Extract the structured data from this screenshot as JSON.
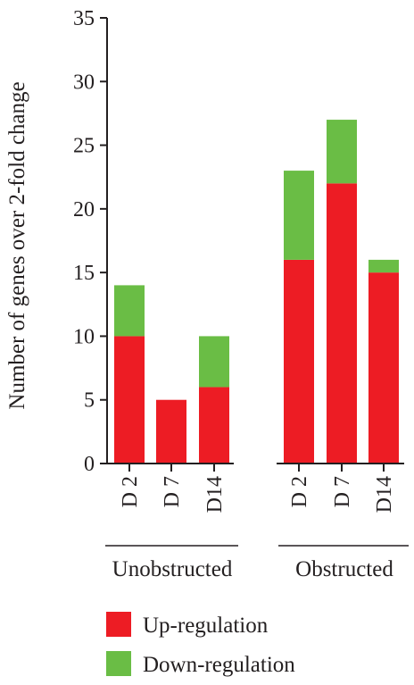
{
  "chart_data": {
    "type": "bar",
    "stacked": true,
    "title": "",
    "xlabel": "",
    "ylabel": "Number of genes over 2-fold change",
    "ylim": [
      0,
      35
    ],
    "yticks": [
      0,
      5,
      10,
      15,
      20,
      25,
      30,
      35
    ],
    "grid": false,
    "groups": [
      {
        "label": "Unobstructed",
        "categories": [
          "D 2",
          "D 7",
          "D14"
        ]
      },
      {
        "label": "Obstructed",
        "categories": [
          "D 2",
          "D 7",
          "D14"
        ]
      }
    ],
    "categories": [
      "D 2",
      "D 7",
      "D14",
      "D 2",
      "D 7",
      "D14"
    ],
    "series": [
      {
        "name": "Up-regulation",
        "color": "#ed1c24",
        "values": [
          10,
          5,
          6,
          16,
          22,
          15
        ]
      },
      {
        "name": "Down-regulation",
        "color": "#6abd45",
        "values": [
          4,
          0,
          4,
          7,
          5,
          1
        ]
      }
    ],
    "legend_position": "bottom-left"
  }
}
